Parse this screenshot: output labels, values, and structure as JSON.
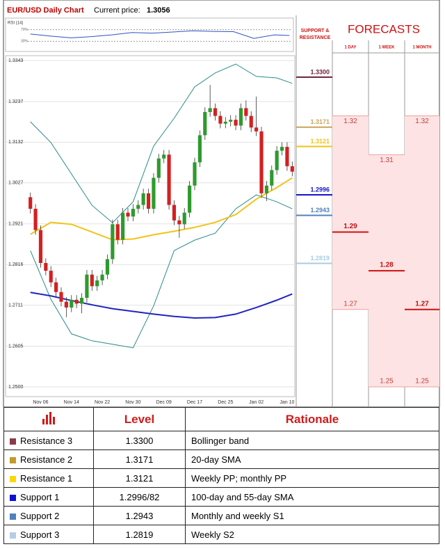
{
  "header": {
    "title": "EUR/USD Daily Chart",
    "current_price_label": "Current price:",
    "current_price": 1.3056
  },
  "chart_data": {
    "type": "candlestick",
    "ylim": [
      1.25,
      1.3343
    ],
    "yticks": [
      {
        "value": 1.3343,
        "label": "1.3343"
      },
      {
        "value": 1.3237,
        "label": "1.3237"
      },
      {
        "value": 1.3132,
        "label": "1.3132"
      },
      {
        "value": 1.3027,
        "label": "1.3027"
      },
      {
        "value": 1.2921,
        "label": "1.2921"
      },
      {
        "value": 1.2816,
        "label": "1.2816"
      },
      {
        "value": 1.2711,
        "label": "1.2711"
      },
      {
        "value": 1.2605,
        "label": "1.2605"
      },
      {
        "value": 1.25,
        "label": "1.2500"
      }
    ],
    "grid": true,
    "up_color": "#2e9a2e",
    "down_color": "#d42020",
    "categories": [
      null,
      null,
      "Nov 06",
      null,
      null,
      null,
      null,
      null,
      "Nov 14",
      null,
      null,
      null,
      null,
      null,
      "Nov 22",
      null,
      null,
      null,
      null,
      null,
      "Nov 30",
      null,
      null,
      null,
      null,
      null,
      "Dec 09",
      null,
      null,
      null,
      null,
      null,
      "Dec 17",
      null,
      null,
      null,
      null,
      null,
      "Dec 25",
      null,
      null,
      null,
      null,
      null,
      "Jan 02",
      null,
      null,
      null,
      null,
      null,
      "Jan 10",
      null
    ],
    "ohlc": [
      [
        1.299,
        1.3002,
        1.2948,
        1.296
      ],
      [
        1.296,
        1.2972,
        1.2893,
        1.2905
      ],
      [
        1.2905,
        1.2917,
        1.2808,
        1.282
      ],
      [
        1.282,
        1.2832,
        1.2788,
        1.28
      ],
      [
        1.28,
        1.2812,
        1.2758,
        1.277
      ],
      [
        1.277,
        1.2782,
        1.2733,
        1.2745
      ],
      [
        1.2745,
        1.2757,
        1.2708,
        1.272
      ],
      [
        1.272,
        1.2732,
        1.268,
        1.2705
      ],
      [
        1.2705,
        1.2737,
        1.2693,
        1.2725
      ],
      [
        1.2725,
        1.2737,
        1.2703,
        1.2715
      ],
      [
        1.2715,
        1.2742,
        1.269,
        1.273
      ],
      [
        1.273,
        1.2802,
        1.2718,
        1.279
      ],
      [
        1.279,
        1.2802,
        1.2748,
        1.276
      ],
      [
        1.276,
        1.2787,
        1.2748,
        1.2775
      ],
      [
        1.2775,
        1.2802,
        1.2763,
        1.279
      ],
      [
        1.279,
        1.2842,
        1.2778,
        1.283
      ],
      [
        1.283,
        1.2932,
        1.2818,
        1.292
      ],
      [
        1.292,
        1.2932,
        1.2868,
        1.288
      ],
      [
        1.288,
        1.2962,
        1.2868,
        1.295
      ],
      [
        1.295,
        1.2962,
        1.2928,
        1.294
      ],
      [
        1.294,
        1.2972,
        1.2928,
        1.296
      ],
      [
        1.296,
        1.2982,
        1.2948,
        1.297
      ],
      [
        1.297,
        1.3012,
        1.2958,
        1.3
      ],
      [
        1.3,
        1.3012,
        1.2948,
        1.296
      ],
      [
        1.296,
        1.3052,
        1.2948,
        1.304
      ],
      [
        1.304,
        1.3102,
        1.3028,
        1.309
      ],
      [
        1.309,
        1.3112,
        1.3078,
        1.31
      ],
      [
        1.31,
        1.3112,
        1.2958,
        1.297
      ],
      [
        1.297,
        1.2982,
        1.2918,
        1.293
      ],
      [
        1.293,
        1.2942,
        1.2885,
        1.292
      ],
      [
        1.292,
        1.2962,
        1.2908,
        1.295
      ],
      [
        1.295,
        1.3032,
        1.2938,
        1.302
      ],
      [
        1.302,
        1.3092,
        1.3008,
        1.308
      ],
      [
        1.308,
        1.3162,
        1.3068,
        1.315
      ],
      [
        1.315,
        1.3222,
        1.3138,
        1.321
      ],
      [
        1.321,
        1.328,
        1.3198,
        1.322
      ],
      [
        1.322,
        1.3232,
        1.3188,
        1.32
      ],
      [
        1.32,
        1.3212,
        1.3168,
        1.318
      ],
      [
        1.318,
        1.3197,
        1.3168,
        1.3185
      ],
      [
        1.3185,
        1.3202,
        1.3173,
        1.319
      ],
      [
        1.319,
        1.3202,
        1.3163,
        1.3175
      ],
      [
        1.3175,
        1.3232,
        1.3163,
        1.322
      ],
      [
        1.322,
        1.324,
        1.3188,
        1.32
      ],
      [
        1.32,
        1.3212,
        1.3158,
        1.317
      ],
      [
        1.317,
        1.325,
        1.3148,
        1.316
      ],
      [
        1.316,
        1.3172,
        1.2988,
        1.3
      ],
      [
        1.3,
        1.3032,
        1.298,
        1.302
      ],
      [
        1.302,
        1.3072,
        1.3008,
        1.306
      ],
      [
        1.306,
        1.3122,
        1.3048,
        1.311
      ],
      [
        1.311,
        1.3132,
        1.3098,
        1.312
      ],
      [
        1.312,
        1.3132,
        1.3058,
        1.307
      ],
      [
        1.307,
        1.3082,
        1.3044,
        1.3056
      ]
    ],
    "overlays": [
      {
        "color": "#2a8a8a",
        "x": [
          0,
          4,
          8,
          12,
          16,
          20,
          24,
          28,
          32,
          36,
          40,
          44,
          48,
          51
        ],
        "values": [
          1.3185,
          1.3131,
          1.305,
          1.2969,
          1.2924,
          1.2978,
          1.3122,
          1.3194,
          1.3275,
          1.3311,
          1.3334,
          1.3302,
          1.3298,
          1.3284
        ]
      },
      {
        "color": "#2a8a8a",
        "x": [
          0,
          4,
          8,
          12,
          16,
          20,
          24,
          28,
          32,
          36,
          40,
          44,
          48,
          51
        ],
        "values": [
          1.2852,
          1.2726,
          1.2637,
          1.2619,
          1.261,
          1.2601,
          1.2709,
          1.2852,
          1.2879,
          1.2897,
          1.296,
          1.2996,
          1.2978,
          1.296
        ]
      },
      {
        "color": "#f2c318",
        "x": [
          0,
          4,
          8,
          12,
          16,
          20,
          24,
          28,
          32,
          36,
          40,
          44,
          48,
          51
        ],
        "values": [
          1.2894,
          1.2925,
          1.292,
          1.29,
          1.288,
          1.2882,
          1.2893,
          1.2902,
          1.2912,
          1.2925,
          1.2945,
          1.2985,
          1.3015,
          1.304
        ]
      },
      {
        "color": "#2323c0",
        "x": [
          0,
          4,
          8,
          12,
          16,
          20,
          24,
          28,
          32,
          36,
          40,
          44,
          48,
          51
        ],
        "values": [
          1.2744,
          1.2735,
          1.2723,
          1.2712,
          1.2702,
          1.2695,
          1.2688,
          1.2682,
          1.2678,
          1.2679,
          1.2688,
          1.2705,
          1.2724,
          1.274
        ]
      }
    ],
    "rsi": {
      "label": "RSI (14)",
      "ylim": [
        0,
        100
      ],
      "yticks": [
        {
          "value": 70,
          "label": "70%"
        },
        {
          "value": 30,
          "label": "30%"
        }
      ],
      "color": "#3050c0",
      "x": [
        0,
        4,
        8,
        12,
        16,
        20,
        24,
        28,
        32,
        36,
        40,
        44,
        48,
        51
      ],
      "values": [
        55,
        48,
        42,
        46,
        52,
        60,
        58,
        62,
        66,
        64,
        63,
        40,
        52,
        50
      ]
    },
    "levels": [
      {
        "value": 1.33,
        "label": "1.3300",
        "color": "#6b1f35"
      },
      {
        "value": 1.3171,
        "label": "1.3171",
        "color": "#c8a45a"
      },
      {
        "value": 1.3121,
        "label": "1.3121",
        "color": "#f2c318"
      },
      {
        "value": 1.2996,
        "label": "1.2996",
        "color": "#1414c8"
      },
      {
        "value": 1.2943,
        "label": "1.2943",
        "color": "#4f81bd"
      },
      {
        "value": 1.2819,
        "label": "1.2819",
        "color": "#a8cde0"
      }
    ]
  },
  "forecasts": {
    "title": "FORECASTS",
    "sr_header": "SUPPORT & RESISTANCE",
    "columns": [
      {
        "name": "1 DAY",
        "high": 1.32,
        "mid": 1.29,
        "low": 1.27
      },
      {
        "name": "1 WEEK",
        "high": 1.31,
        "mid": 1.28,
        "low": 1.25
      },
      {
        "name": "1 MONTH",
        "high": 1.32,
        "mid": 1.27,
        "low": 1.25
      }
    ]
  },
  "table": {
    "headers": [
      "Level",
      "Rationale"
    ],
    "rows": [
      {
        "name": "Resistance 3",
        "color": "#8b3a4a",
        "level": "1.3300",
        "rationale": "Bollinger band"
      },
      {
        "name": "Resistance 2",
        "color": "#c59a2c",
        "level": "1.3171",
        "rationale": "20-day SMA"
      },
      {
        "name": "Resistance 1",
        "color": "#ffd700",
        "level": "1.3121",
        "rationale": "Weekly PP; monthly PP"
      },
      {
        "name": "Support 1",
        "color": "#1010d0",
        "level": "1.2996/82",
        "rationale": "100-day and 55-day SMA"
      },
      {
        "name": "Support 2",
        "color": "#4f81bd",
        "level": "1.2943",
        "rationale": "Monthly and weekly S1"
      },
      {
        "name": "Support 3",
        "color": "#b8cce4",
        "level": "1.2819",
        "rationale": "Weekly S2"
      }
    ]
  }
}
